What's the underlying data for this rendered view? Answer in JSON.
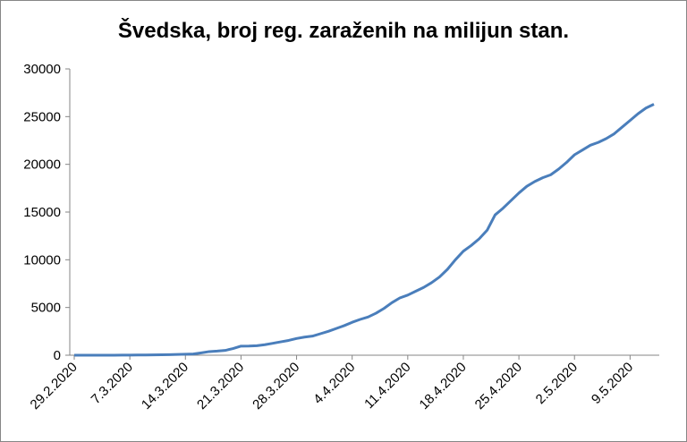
{
  "chart_data": {
    "type": "line",
    "title": "Švedska, broj reg. zaraženih na milijun stan.",
    "categories": [
      "29.2.2020",
      null,
      null,
      null,
      null,
      null,
      null,
      "7.3.2020",
      null,
      null,
      null,
      null,
      null,
      null,
      "14.3.2020",
      null,
      null,
      null,
      null,
      null,
      null,
      "21.3.2020",
      null,
      null,
      null,
      null,
      null,
      null,
      "28.3.2020",
      null,
      null,
      null,
      null,
      null,
      null,
      "4.4.2020",
      null,
      null,
      null,
      null,
      null,
      null,
      "11.4.2020",
      null,
      null,
      null,
      null,
      null,
      null,
      "18.4.2020",
      null,
      null,
      null,
      null,
      null,
      null,
      "25.4.2020",
      null,
      null,
      null,
      null,
      null,
      null,
      "2.5.2020",
      null,
      null,
      null,
      null,
      null,
      null,
      "9.5.2020",
      null,
      null,
      null
    ],
    "series": [
      {
        "color": "#4a7ebb",
        "values": [
          1,
          1,
          1,
          2,
          4,
          5,
          10,
          14,
          20,
          25,
          35,
          50,
          60,
          80,
          100,
          130,
          250,
          380,
          430,
          500,
          700,
          950,
          960,
          1000,
          1100,
          1250,
          1400,
          1550,
          1750,
          1900,
          2000,
          2250,
          2500,
          2800,
          3100,
          3450,
          3750,
          4000,
          4400,
          4900,
          5500,
          6000,
          6300,
          6700,
          7100,
          7600,
          8200,
          9000,
          10000,
          10900,
          11500,
          12200,
          13100,
          14700,
          15400,
          16200,
          17000,
          17700,
          18200,
          18600,
          18900,
          19500,
          20200,
          21000,
          21500,
          22000,
          22300,
          22700,
          23200,
          23900,
          24600,
          25300,
          25900,
          26300
        ]
      }
    ],
    "ylim": [
      0,
      30000
    ],
    "yticks": [
      0,
      5000,
      10000,
      15000,
      20000,
      25000,
      30000
    ],
    "grid": false
  }
}
